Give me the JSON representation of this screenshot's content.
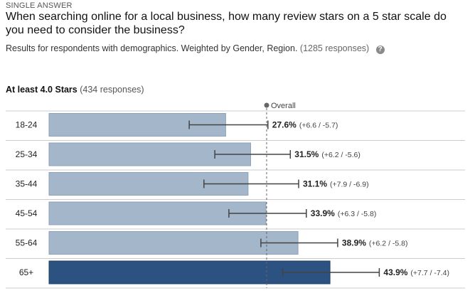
{
  "header": {
    "question_type": "SINGLE ANSWER",
    "question": "When searching online for a local business, how many review stars on a 5 star scale do you need to consider the business?",
    "subtitle": "Results for respondents with demographics. Weighted by Gender, Region.",
    "responses": "(1285 responses)"
  },
  "group": {
    "title": "At least 4.0 Stars",
    "responses": "(434 responses)"
  },
  "chart_data": {
    "type": "bar",
    "orientation": "horizontal",
    "categories": [
      "18-24",
      "25-34",
      "35-44",
      "45-54",
      "55-64",
      "65+"
    ],
    "values": [
      27.6,
      31.5,
      31.1,
      33.9,
      38.9,
      43.9
    ],
    "error_plus": [
      6.6,
      6.2,
      7.9,
      6.3,
      6.2,
      7.7
    ],
    "error_minus": [
      5.7,
      5.6,
      6.9,
      5.8,
      5.8,
      7.4
    ],
    "value_labels": [
      "27.6%",
      "31.5%",
      "31.1%",
      "33.9%",
      "38.9%",
      "43.9%"
    ],
    "ci_labels": [
      "(+6.6 / -5.7)",
      "(+6.2 / -5.6)",
      "(+7.9 / -6.9)",
      "(+6.3 / -5.8)",
      "(+6.2 / -5.8)",
      "(+7.7 / -7.4)"
    ],
    "reference_line": {
      "label": "Overall",
      "value": 34
    },
    "highlight_index": 5,
    "xlim": [
      0,
      100
    ],
    "colors": {
      "bar": "#a4b6ca",
      "bar_border": "#8ea2b8",
      "bar_highlight": "#2b5281",
      "bar_highlight_border": "#1f3f66",
      "error_bar": "#444444",
      "reference_line": "#666666",
      "row_border": "#cccccc"
    }
  }
}
